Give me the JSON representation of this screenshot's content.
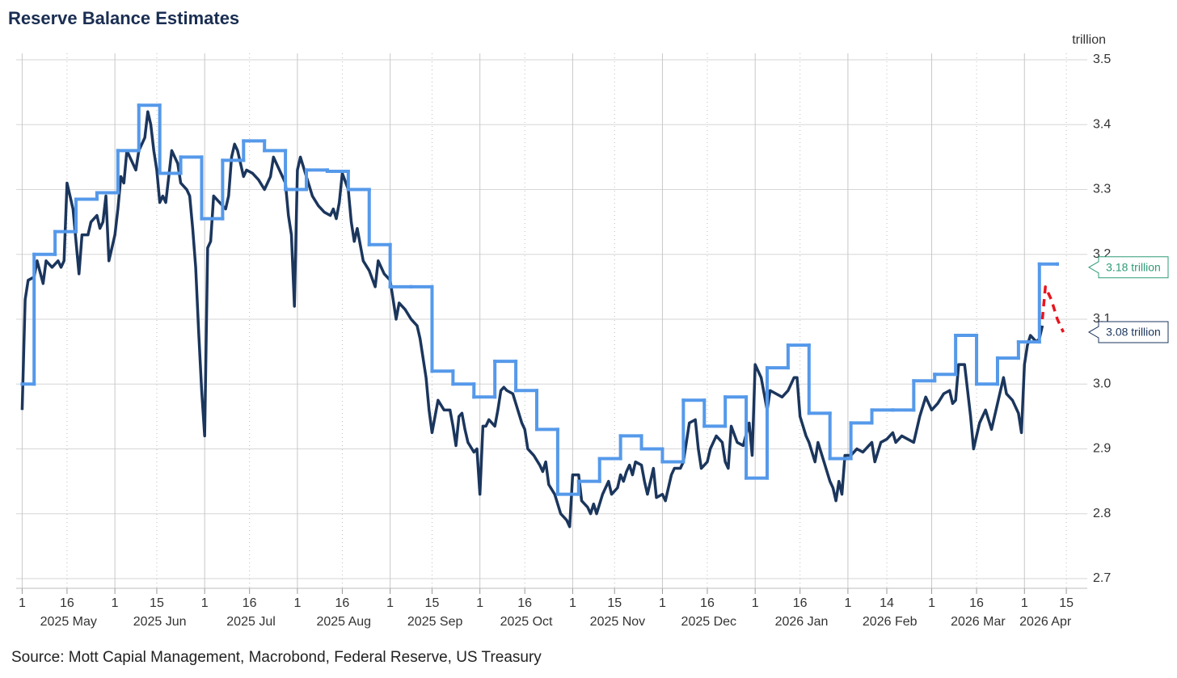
{
  "chart_data": {
    "type": "line",
    "title": "Reserve Balance Estimates",
    "y_unit": "trillion",
    "source": "Source: Mott Capial Management, Macrobond, Federal Reserve, US Treasury",
    "xlim": [
      "2025-04-29",
      "2026-04-22"
    ],
    "ylim": [
      2.685,
      3.51
    ],
    "yticks": [
      {
        "value": 2.7,
        "label": "2.7"
      },
      2.8,
      2.9,
      {
        "value": 3.0,
        "label": "3.0"
      },
      3.1,
      3.2,
      3.3,
      3.4,
      3.5
    ],
    "xticks": [
      {
        "value": "2025-05-01",
        "label": "1"
      },
      {
        "value": "2025-05-16",
        "label": "16"
      },
      {
        "value": "2025-06-01",
        "label": "1"
      },
      {
        "value": "2025-06-15",
        "label": "15"
      },
      {
        "value": "2025-07-01",
        "label": "1"
      },
      {
        "value": "2025-07-16",
        "label": "16"
      },
      {
        "value": "2025-08-01",
        "label": "1"
      },
      {
        "value": "2025-08-16",
        "label": "16"
      },
      {
        "value": "2025-09-01",
        "label": "1"
      },
      {
        "value": "2025-09-15",
        "label": "15"
      },
      {
        "value": "2025-10-01",
        "label": "1"
      },
      {
        "value": "2025-10-16",
        "label": "16"
      },
      {
        "value": "2025-11-01",
        "label": "1"
      },
      {
        "value": "2025-11-15",
        "label": "15"
      },
      {
        "value": "2025-12-01",
        "label": "1"
      },
      {
        "value": "2025-12-16",
        "label": "16"
      },
      {
        "value": "2026-01-01",
        "label": "1"
      },
      {
        "value": "2026-01-16",
        "label": "16"
      },
      {
        "value": "2026-02-01",
        "label": "1"
      },
      {
        "value": "2026-02-14",
        "label": "14"
      },
      {
        "value": "2026-03-01",
        "label": "1"
      },
      {
        "value": "2026-03-16",
        "label": "16"
      },
      {
        "value": "2026-04-01",
        "label": "1"
      },
      {
        "value": "2026-04-15",
        "label": "15"
      }
    ],
    "month_labels": [
      {
        "value": "2025-05-01",
        "label": "2025 May"
      },
      {
        "value": "2025-06-01",
        "label": "2025 Jun"
      },
      {
        "value": "2025-07-01",
        "label": "2025 Jul"
      },
      {
        "value": "2025-08-01",
        "label": "2025 Aug"
      },
      {
        "value": "2025-09-01",
        "label": "2025 Sep"
      },
      {
        "value": "2025-10-01",
        "label": "2025 Oct"
      },
      {
        "value": "2025-11-01",
        "label": "2025 Nov"
      },
      {
        "value": "2025-12-01",
        "label": "2025 Dec"
      },
      {
        "value": "2026-01-01",
        "label": "2026 Jan"
      },
      {
        "value": "2026-02-01",
        "label": "2026 Feb"
      },
      {
        "value": "2026-03-01",
        "label": "2026 Mar"
      },
      {
        "value": "2026-04-01",
        "label": "2026 Apr"
      }
    ],
    "grid": true,
    "series": [
      {
        "color": "#1b365d",
        "width": 3.5,
        "x": [
          "2025-05-01",
          "2025-05-02",
          "2025-05-03",
          "2025-05-05",
          "2025-05-06",
          "2025-05-08",
          "2025-05-09",
          "2025-05-11",
          "2025-05-13",
          "2025-05-14",
          "2025-05-15",
          "2025-05-16",
          "2025-05-18",
          "2025-05-20",
          "2025-05-21",
          "2025-05-23",
          "2025-05-24",
          "2025-05-26",
          "2025-05-27",
          "2025-05-28",
          "2025-05-29",
          "2025-05-30",
          "2025-06-01",
          "2025-06-02",
          "2025-06-03",
          "2025-06-04",
          "2025-06-05",
          "2025-06-06",
          "2025-06-08",
          "2025-06-09",
          "2025-06-10",
          "2025-06-11",
          "2025-06-12",
          "2025-06-13",
          "2025-06-14",
          "2025-06-15",
          "2025-06-16",
          "2025-06-17",
          "2025-06-18",
          "2025-06-19",
          "2025-06-20",
          "2025-06-22",
          "2025-06-23",
          "2025-06-25",
          "2025-06-26",
          "2025-06-27",
          "2025-06-28",
          "2025-06-29",
          "2025-06-30",
          "2025-07-01",
          "2025-07-02",
          "2025-07-03",
          "2025-07-04",
          "2025-07-06",
          "2025-07-08",
          "2025-07-09",
          "2025-07-10",
          "2025-07-11",
          "2025-07-12",
          "2025-07-13",
          "2025-07-14",
          "2025-07-15",
          "2025-07-17",
          "2025-07-19",
          "2025-07-21",
          "2025-07-23",
          "2025-07-24",
          "2025-07-26",
          "2025-07-28",
          "2025-07-29",
          "2025-07-30",
          "2025-07-31",
          "2025-08-01",
          "2025-08-02",
          "2025-08-04",
          "2025-08-06",
          "2025-08-08",
          "2025-08-10",
          "2025-08-12",
          "2025-08-13",
          "2025-08-14",
          "2025-08-15",
          "2025-08-16",
          "2025-08-18",
          "2025-08-19",
          "2025-08-20",
          "2025-08-21",
          "2025-08-23",
          "2025-08-25",
          "2025-08-27",
          "2025-08-28",
          "2025-08-30",
          "2025-09-01",
          "2025-09-02",
          "2025-09-03",
          "2025-09-04",
          "2025-09-06",
          "2025-09-08",
          "2025-09-10",
          "2025-09-11",
          "2025-09-13",
          "2025-09-14",
          "2025-09-15",
          "2025-09-16",
          "2025-09-17",
          "2025-09-19",
          "2025-09-21",
          "2025-09-22",
          "2025-09-23",
          "2025-09-24",
          "2025-09-25",
          "2025-09-26",
          "2025-09-27",
          "2025-09-29",
          "2025-09-30",
          "2025-10-01",
          "2025-10-02",
          "2025-10-03",
          "2025-10-04",
          "2025-10-06",
          "2025-10-07",
          "2025-10-08",
          "2025-10-09",
          "2025-10-10",
          "2025-10-12",
          "2025-10-14",
          "2025-10-15",
          "2025-10-16",
          "2025-10-17",
          "2025-10-19",
          "2025-10-21",
          "2025-10-22",
          "2025-10-23",
          "2025-10-24",
          "2025-10-26",
          "2025-10-28",
          "2025-10-29",
          "2025-10-30",
          "2025-10-31",
          "2025-11-01",
          "2025-11-03",
          "2025-11-04",
          "2025-11-06",
          "2025-11-07",
          "2025-11-08",
          "2025-11-09",
          "2025-11-11",
          "2025-11-13",
          "2025-11-14",
          "2025-11-16",
          "2025-11-17",
          "2025-11-18",
          "2025-11-19",
          "2025-11-20",
          "2025-11-21",
          "2025-11-22",
          "2025-11-24",
          "2025-11-25",
          "2025-11-26",
          "2025-11-28",
          "2025-11-29",
          "2025-12-01",
          "2025-12-02",
          "2025-12-04",
          "2025-12-05",
          "2025-12-07",
          "2025-12-08",
          "2025-12-09",
          "2025-12-10",
          "2025-12-12",
          "2025-12-13",
          "2025-12-14",
          "2025-12-16",
          "2025-12-17",
          "2025-12-19",
          "2025-12-21",
          "2025-12-22",
          "2025-12-23",
          "2025-12-24",
          "2025-12-26",
          "2025-12-28",
          "2025-12-30",
          "2025-12-31",
          "2026-01-01",
          "2026-01-02",
          "2026-01-03",
          "2026-01-05",
          "2026-01-06",
          "2026-01-08",
          "2026-01-10",
          "2026-01-12",
          "2026-01-14",
          "2026-01-15",
          "2026-01-16",
          "2026-01-18",
          "2026-01-19",
          "2026-01-21",
          "2026-01-22",
          "2026-01-24",
          "2026-01-26",
          "2026-01-27",
          "2026-01-28",
          "2026-01-29",
          "2026-01-30",
          "2026-01-31",
          "2026-02-02",
          "2026-02-04",
          "2026-02-06",
          "2026-02-07",
          "2026-02-09",
          "2026-02-10",
          "2026-02-12",
          "2026-02-14",
          "2026-02-16",
          "2026-02-17",
          "2026-02-19",
          "2026-02-21",
          "2026-02-23",
          "2026-02-25",
          "2026-02-27",
          "2026-03-01",
          "2026-03-03",
          "2026-03-05",
          "2026-03-07",
          "2026-03-08",
          "2026-03-09",
          "2026-03-10",
          "2026-03-12",
          "2026-03-14",
          "2026-03-15",
          "2026-03-17",
          "2026-03-19",
          "2026-03-21",
          "2026-03-23",
          "2026-03-24",
          "2026-03-25",
          "2026-03-26",
          "2026-03-28",
          "2026-03-30",
          "2026-03-31",
          "2026-04-01",
          "2026-04-02",
          "2026-04-03",
          "2026-04-05",
          "2026-04-06",
          "2026-04-07"
        ],
        "values": [
          2.96,
          3.13,
          3.16,
          3.165,
          3.19,
          3.155,
          3.19,
          3.18,
          3.19,
          3.18,
          3.19,
          3.31,
          3.27,
          3.17,
          3.23,
          3.23,
          3.25,
          3.26,
          3.24,
          3.25,
          3.29,
          3.19,
          3.23,
          3.27,
          3.32,
          3.31,
          3.36,
          3.35,
          3.33,
          3.36,
          3.37,
          3.38,
          3.42,
          3.4,
          3.36,
          3.33,
          3.28,
          3.29,
          3.28,
          3.32,
          3.36,
          3.34,
          3.31,
          3.3,
          3.29,
          3.24,
          3.18,
          3.08,
          2.99,
          2.92,
          3.21,
          3.22,
          3.29,
          3.28,
          3.27,
          3.29,
          3.35,
          3.37,
          3.36,
          3.34,
          3.32,
          3.33,
          3.325,
          3.315,
          3.3,
          3.32,
          3.35,
          3.33,
          3.31,
          3.26,
          3.23,
          3.12,
          3.33,
          3.35,
          3.32,
          3.29,
          3.275,
          3.265,
          3.26,
          3.27,
          3.255,
          3.28,
          3.325,
          3.3,
          3.25,
          3.22,
          3.24,
          3.19,
          3.175,
          3.15,
          3.19,
          3.17,
          3.16,
          3.13,
          3.1,
          3.125,
          3.115,
          3.1,
          3.09,
          3.07,
          3.01,
          2.96,
          2.925,
          2.95,
          2.975,
          2.96,
          2.96,
          2.935,
          2.905,
          2.95,
          2.955,
          2.93,
          2.91,
          2.895,
          2.9,
          2.83,
          2.935,
          2.935,
          2.945,
          2.935,
          2.96,
          2.99,
          2.995,
          2.99,
          2.985,
          2.955,
          2.94,
          2.93,
          2.9,
          2.89,
          2.875,
          2.865,
          2.88,
          2.845,
          2.83,
          2.8,
          2.795,
          2.79,
          2.78,
          2.86,
          2.86,
          2.82,
          2.81,
          2.8,
          2.815,
          2.8,
          2.83,
          2.85,
          2.83,
          2.84,
          2.86,
          2.85,
          2.865,
          2.875,
          2.86,
          2.88,
          2.875,
          2.85,
          2.83,
          2.87,
          2.825,
          2.83,
          2.82,
          2.86,
          2.87,
          2.87,
          2.88,
          2.91,
          2.94,
          2.945,
          2.9,
          2.87,
          2.88,
          2.9,
          2.92,
          2.91,
          2.88,
          2.87,
          2.935,
          2.91,
          2.905,
          2.94,
          2.89,
          3.03,
          3.02,
          3.01,
          2.96,
          2.99,
          2.985,
          2.98,
          2.99,
          3.01,
          3.01,
          2.95,
          2.92,
          2.91,
          2.88,
          2.91,
          2.88,
          2.85,
          2.84,
          2.82,
          2.85,
          2.83,
          2.89,
          2.89,
          2.9,
          2.895,
          2.9,
          2.91,
          2.88,
          2.91,
          2.915,
          2.925,
          2.91,
          2.92,
          2.915,
          2.91,
          2.95,
          2.98,
          2.96,
          2.97,
          2.985,
          2.99,
          2.97,
          2.975,
          3.03,
          3.03,
          2.95,
          2.9,
          2.94,
          2.96,
          2.93,
          2.97,
          2.99,
          3.01,
          2.985,
          2.975,
          2.955,
          2.925,
          3.03,
          3.06,
          3.075,
          3.065,
          3.07,
          3.09
        ]
      },
      {
        "color": "#5599ea",
        "width": 4,
        "step": true,
        "x": [
          "2025-05-01",
          "2025-05-05",
          "2025-05-12",
          "2025-05-19",
          "2025-05-26",
          "2025-06-02",
          "2025-06-09",
          "2025-06-16",
          "2025-06-23",
          "2025-06-30",
          "2025-07-07",
          "2025-07-14",
          "2025-07-21",
          "2025-07-28",
          "2025-08-04",
          "2025-08-11",
          "2025-08-18",
          "2025-08-25",
          "2025-09-01",
          "2025-09-08",
          "2025-09-15",
          "2025-09-22",
          "2025-09-29",
          "2025-10-06",
          "2025-10-13",
          "2025-10-20",
          "2025-10-27",
          "2025-11-03",
          "2025-11-10",
          "2025-11-17",
          "2025-11-24",
          "2025-12-01",
          "2025-12-08",
          "2025-12-15",
          "2025-12-22",
          "2025-12-29",
          "2026-01-05",
          "2026-01-12",
          "2026-01-19",
          "2026-01-26",
          "2026-02-02",
          "2026-02-09",
          "2026-02-16",
          "2026-02-23",
          "2026-03-02",
          "2026-03-09",
          "2026-03-16",
          "2026-03-23",
          "2026-03-30",
          "2026-04-06",
          "2026-04-12"
        ],
        "values": [
          3.0,
          3.2,
          3.235,
          3.285,
          3.295,
          3.36,
          3.43,
          3.325,
          3.35,
          3.255,
          3.345,
          3.375,
          3.36,
          3.3,
          3.33,
          3.328,
          3.3,
          3.215,
          3.15,
          3.15,
          3.02,
          3.0,
          2.98,
          3.035,
          2.99,
          2.93,
          2.83,
          2.85,
          2.885,
          2.92,
          2.9,
          2.88,
          2.975,
          2.935,
          2.98,
          2.855,
          3.025,
          3.06,
          2.955,
          2.885,
          2.94,
          2.96,
          2.96,
          3.005,
          3.015,
          3.075,
          3.0,
          3.04,
          3.065,
          3.185,
          3.185
        ]
      },
      {
        "color": "#e8141e",
        "width": 3.5,
        "dashed": true,
        "x": [
          "2026-04-07",
          "2026-04-08",
          "2026-04-10",
          "2026-04-12",
          "2026-04-14"
        ],
        "values": [
          3.1,
          3.15,
          3.13,
          3.1,
          3.08
        ]
      }
    ],
    "annotations": [
      {
        "text": "3.18 trillion",
        "value": 3.18,
        "color": "#2e9b78"
      },
      {
        "text": "3.08 trillion",
        "value": 3.08,
        "color": "#1b365d"
      }
    ]
  }
}
